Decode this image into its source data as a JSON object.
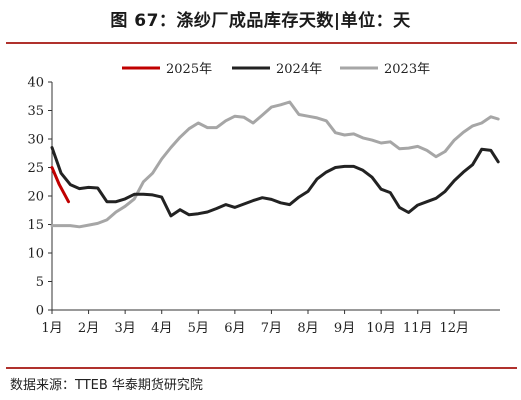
{
  "header": {
    "title": "图 67：涤纱厂成品库存天数|单位：天"
  },
  "footer": {
    "source": "数据来源：TTEB 华泰期货研究院"
  },
  "colors": {
    "rule": "#b0312d",
    "series_2025": "#c00000",
    "series_2024": "#222222",
    "series_2023": "#a6a6a6"
  },
  "chart_data": {
    "type": "line",
    "title": "涤纱厂成品库存天数",
    "xlabel": "",
    "ylabel": "",
    "ylim": [
      0,
      40
    ],
    "yticks": [
      0,
      5,
      10,
      15,
      20,
      25,
      30,
      35,
      40
    ],
    "xlim": [
      0,
      12.25
    ],
    "xticks": [
      0,
      1,
      2,
      3,
      4,
      5,
      6,
      7,
      8,
      9,
      10,
      11
    ],
    "xtick_labels": [
      "1月",
      "2月",
      "3月",
      "4月",
      "5月",
      "6月",
      "7月",
      "8月",
      "9月",
      "10月",
      "11月",
      "12月"
    ],
    "x_unit": "month offset from start of January",
    "grid": false,
    "legend": "top-center",
    "series": [
      {
        "name": "2025年",
        "color": "#c00000",
        "x": [
          0,
          0.2,
          0.45
        ],
        "y": [
          25.0,
          22.0,
          19.0
        ]
      },
      {
        "name": "2024年",
        "color": "#222222",
        "x": [
          0,
          0.25,
          0.5,
          0.75,
          1.0,
          1.25,
          1.5,
          1.75,
          2.0,
          2.25,
          2.5,
          2.75,
          3.0,
          3.25,
          3.5,
          3.75,
          4.0,
          4.25,
          4.5,
          4.75,
          5.0,
          5.25,
          5.5,
          5.75,
          6.0,
          6.25,
          6.5,
          6.75,
          7.0,
          7.25,
          7.5,
          7.75,
          8.0,
          8.25,
          8.5,
          8.75,
          9.0,
          9.25,
          9.5,
          9.75,
          10.0,
          10.25,
          10.5,
          10.75,
          11.0,
          11.25,
          11.5,
          11.75,
          12.0,
          12.2
        ],
        "y": [
          28.5,
          24.0,
          22.0,
          21.3,
          21.5,
          21.4,
          19.0,
          19.0,
          19.5,
          20.3,
          20.3,
          20.2,
          19.8,
          16.5,
          17.6,
          16.7,
          16.9,
          17.2,
          17.8,
          18.5,
          18.0,
          18.6,
          19.2,
          19.7,
          19.4,
          18.8,
          18.5,
          19.8,
          20.8,
          23.0,
          24.2,
          25.0,
          25.2,
          25.2,
          24.5,
          23.3,
          21.2,
          20.6,
          18.0,
          17.1,
          18.4,
          19.0,
          19.6,
          20.8,
          22.7,
          24.2,
          25.5,
          28.2,
          28.0,
          26.0
        ]
      },
      {
        "name": "2023年",
        "color": "#a6a6a6",
        "x": [
          0,
          0.25,
          0.5,
          0.75,
          1.0,
          1.25,
          1.5,
          1.75,
          2.0,
          2.25,
          2.5,
          2.75,
          3.0,
          3.25,
          3.5,
          3.75,
          4.0,
          4.25,
          4.5,
          4.75,
          5.0,
          5.25,
          5.5,
          5.75,
          6.0,
          6.25,
          6.5,
          6.75,
          7.0,
          7.25,
          7.5,
          7.75,
          8.0,
          8.25,
          8.5,
          8.75,
          9.0,
          9.25,
          9.5,
          9.75,
          10.0,
          10.25,
          10.5,
          10.75,
          11.0,
          11.25,
          11.5,
          11.75,
          12.0,
          12.2
        ],
        "y": [
          14.8,
          14.8,
          14.8,
          14.6,
          14.9,
          15.2,
          15.8,
          17.2,
          18.2,
          19.5,
          22.5,
          24.0,
          26.5,
          28.5,
          30.3,
          31.8,
          32.8,
          32.0,
          32.0,
          33.2,
          34.0,
          33.8,
          32.8,
          34.2,
          35.6,
          36.0,
          36.5,
          34.3,
          34.0,
          33.7,
          33.2,
          31.1,
          30.7,
          30.9,
          30.2,
          29.8,
          29.3,
          29.5,
          28.3,
          28.4,
          28.7,
          28.0,
          26.9,
          27.8,
          29.8,
          31.2,
          32.3,
          32.8,
          33.9,
          33.5
        ]
      }
    ]
  }
}
